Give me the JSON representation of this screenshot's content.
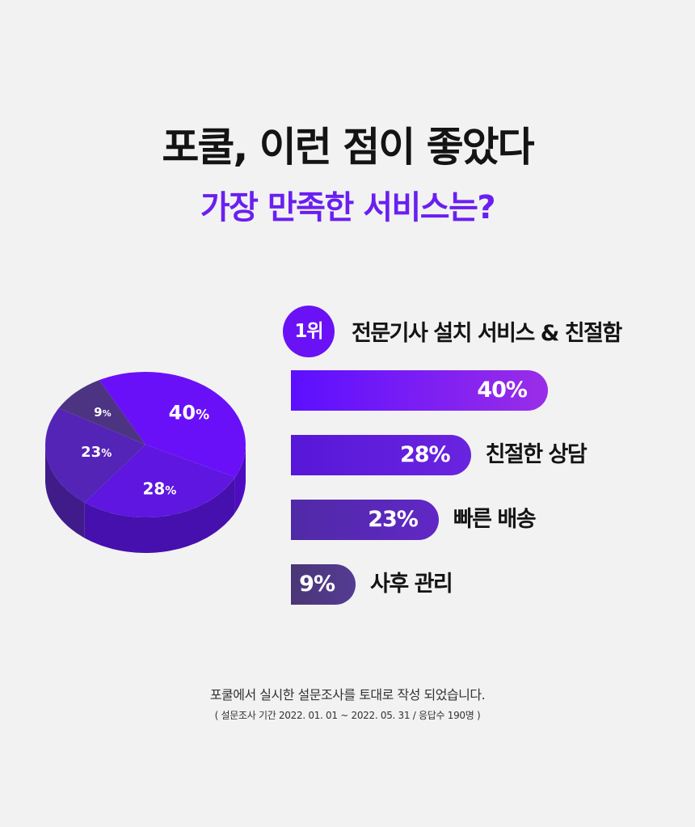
{
  "header": {
    "title": "포쿨, 이런 점이 좋았다",
    "subtitle": "가장 만족한 서비스는?"
  },
  "rank": {
    "badge": "1위"
  },
  "chart_data": {
    "type": "bar",
    "categories": [
      "전문기사 설치 서비스 & 친절함",
      "친절한 상담",
      "빠른 배송",
      "사후 관리"
    ],
    "values": [
      40,
      28,
      23,
      9
    ],
    "value_labels": [
      "40%",
      "28%",
      "23%",
      "9%"
    ],
    "pie_labels": [
      "40",
      "28",
      "23",
      "9"
    ],
    "percent_sign": "%",
    "xlim": [
      0,
      40
    ],
    "colors": [
      "#6410f6",
      "#5b18d6",
      "#5525b0",
      "#4b3a7c"
    ]
  },
  "footer": {
    "note": "포쿨에서 실시한 설문조사를 토대로 작성 되었습니다.",
    "period": "( 설문조사 기간 2022. 01. 01 ~ 2022. 05. 31 / 응답수 190명 )"
  }
}
